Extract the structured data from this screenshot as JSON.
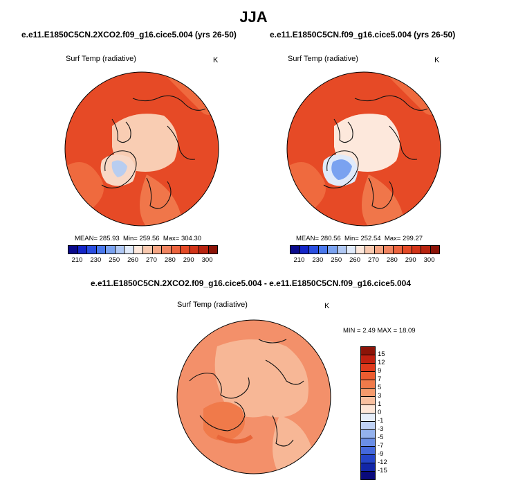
{
  "title": "JJA",
  "panels": [
    {
      "case": "e.e11.E1850C5CN.2XCO2.f09_g16.cice5.004 (yrs 26-50)",
      "var": "Surf Temp (radiative)",
      "units": "K",
      "mean": "MEAN= 285.93",
      "min": "Min= 259.56",
      "max": "Max= 304.30"
    },
    {
      "case": "e.e11.E1850C5CN.f09_g16.cice5.004 (yrs 26-50)",
      "var": "Surf Temp (radiative)",
      "units": "K",
      "mean": "MEAN= 280.56",
      "min": "Min= 252.54",
      "max": "Max= 299.27"
    }
  ],
  "diff": {
    "case": "e.e11.E1850C5CN.2XCO2.f09_g16.cice5.004 - e.e11.E1850C5CN.f09_g16.cice5.004",
    "var": "Surf Temp (radiative)",
    "units": "K",
    "minmax": "MIN =   2.49 MAX =  18.09"
  },
  "abs_colorbar": {
    "labels": [
      "210",
      "230",
      "250",
      "260",
      "270",
      "280",
      "290",
      "300"
    ],
    "colors": [
      "#0a0a8c",
      "#1426c8",
      "#2a4ee0",
      "#4a78ec",
      "#7aa2f0",
      "#b0c8f4",
      "#e0eafa",
      "#fde8dc",
      "#f8c8ae",
      "#f4a482",
      "#f08460",
      "#ec643e",
      "#e44a26",
      "#d23418",
      "#b82410",
      "#8c1408"
    ]
  },
  "diff_colorbar": {
    "labels": [
      "15",
      "12",
      "9",
      "7",
      "5",
      "3",
      "1",
      "0",
      "-1",
      "-3",
      "-5",
      "-7",
      "-9",
      "-12",
      "-15"
    ],
    "colors": [
      "#8c1408",
      "#c02010",
      "#e03a1c",
      "#ec5c30",
      "#f07a4a",
      "#f49a6c",
      "#f8c0a0",
      "#fde6d8",
      "#e6eefa",
      "#c0d2f4",
      "#94b2ee",
      "#6a8ee6",
      "#4468dc",
      "#2444c8",
      "#1226a8",
      "#0a0a7c"
    ]
  },
  "colors": {
    "ocean_hot": "#e64a26",
    "land_warm": "#ef6a3e",
    "arctic_ice": "#f9cdb3",
    "cold_land": "#b8cdf0",
    "diff_base": "#f3906a",
    "diff_light": "#f7b796",
    "coast": "#111111"
  }
}
